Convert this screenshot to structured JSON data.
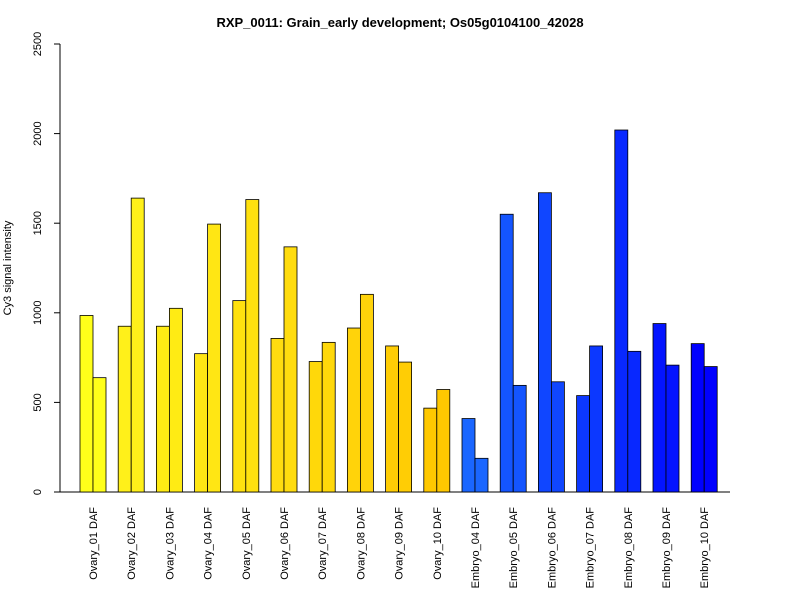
{
  "chart_data": {
    "type": "bar",
    "title": "RXP_0011: Grain_early development; Os05g0104100_42028",
    "ylabel": "Cy3 signal intensity",
    "xlabel": "",
    "ylim": [
      0,
      2500
    ],
    "yticks": [
      0,
      500,
      1000,
      1500,
      2000,
      2500
    ],
    "grid": false,
    "legend": "none",
    "categories": [
      "Ovary_01 DAF",
      "Ovary_02 DAF",
      "Ovary_03 DAF",
      "Ovary_04 DAF",
      "Ovary_05 DAF",
      "Ovary_06 DAF",
      "Ovary_07 DAF",
      "Ovary_08 DAF",
      "Ovary_09 DAF",
      "Ovary_10 DAF",
      "Embryo_04 DAF",
      "Embryo_05 DAF",
      "Embryo_06 DAF",
      "Embryo_07 DAF",
      "Embryo_08 DAF",
      "Embryo_09 DAF",
      "Embryo_10 DAF"
    ],
    "series": [
      {
        "values": [
          985,
          925,
          925,
          772,
          1068,
          857,
          728,
          915,
          815,
          468,
          410,
          1550,
          1670,
          538,
          2020,
          940,
          828
        ]
      },
      {
        "values": [
          638,
          1640,
          1025,
          1495,
          1632,
          1368,
          835,
          1103,
          725,
          572,
          188,
          595,
          615,
          815,
          785,
          708,
          700
        ]
      }
    ],
    "colors": [
      "#ffff1a",
      "#fff01a",
      "#ffeb14",
      "#ffe614",
      "#ffe10f",
      "#ffdc0f",
      "#ffd80a",
      "#ffd30a",
      "#ffcd05",
      "#ffc800",
      "#1a66ff",
      "#1455ff",
      "#1046ff",
      "#0c38ff",
      "#0828ff",
      "#0414ff",
      "#0000ff"
    ]
  }
}
